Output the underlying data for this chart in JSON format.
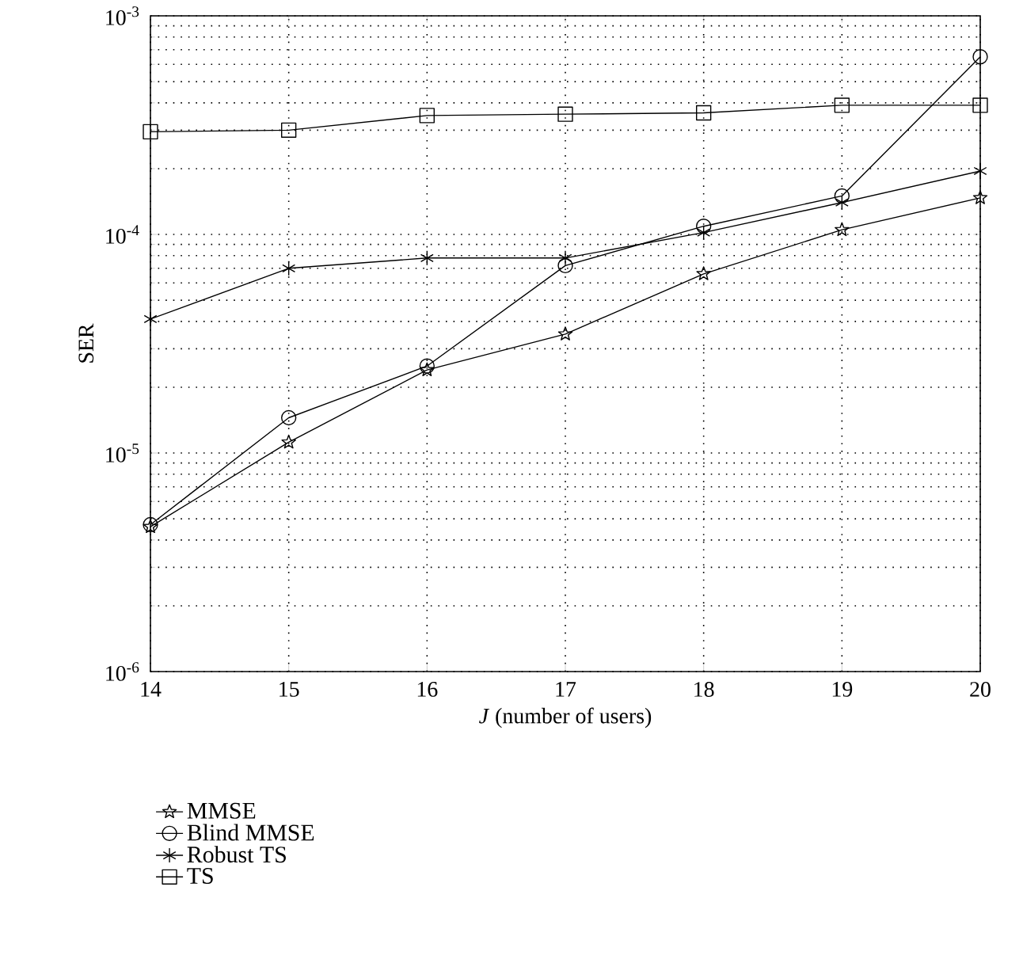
{
  "chart_data": {
    "type": "line",
    "xlabel": "*J* (number of users)",
    "ylabel": "SER",
    "x": [
      14,
      15,
      16,
      17,
      18,
      19,
      20
    ],
    "series": [
      {
        "name": "MMSE",
        "color": "#000000",
        "marker": "star",
        "values": [
          4.6e-06,
          1.12e-05,
          2.4e-05,
          3.5e-05,
          6.6e-05,
          0.000105,
          0.000147
        ]
      },
      {
        "name": "Blind MMSE",
        "color": "#000000",
        "marker": "circle",
        "values": [
          4.7e-06,
          1.45e-05,
          2.5e-05,
          7.2e-05,
          0.000109,
          0.00015,
          0.00065
        ]
      },
      {
        "name": "Robust TS",
        "color": "#000000",
        "marker": "cross",
        "values": [
          4.1e-05,
          7e-05,
          7.8e-05,
          7.8e-05,
          0.000102,
          0.00014,
          0.000195
        ]
      },
      {
        "name": "TS",
        "color": "#000000",
        "marker": "square",
        "values": [
          0.000295,
          0.0003,
          0.00035,
          0.000355,
          0.00036,
          0.00039,
          0.00039
        ]
      }
    ],
    "xlim": [
      14,
      20
    ],
    "xticks": [
      14,
      15,
      16,
      17,
      18,
      19,
      20
    ],
    "ylim": [
      1e-06,
      0.001
    ],
    "yticks": [
      {
        "value": 1e-06,
        "label": "10$^{-6}$"
      },
      {
        "value": 1e-05,
        "label": "10$^{-5}$"
      },
      {
        "value": 0.0001,
        "label": "10$^{-4}$"
      },
      {
        "value": 0.001,
        "label": "10$^{-3}$"
      }
    ],
    "log": "y",
    "grid": true,
    "legend": "bottom left",
    "line_style": "solid"
  }
}
